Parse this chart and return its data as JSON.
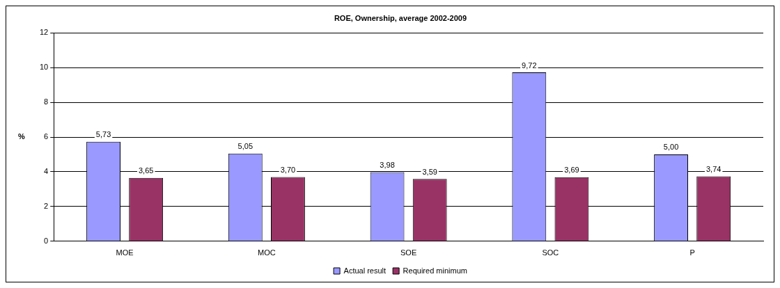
{
  "chart_data": {
    "type": "bar",
    "title": "ROE, Ownership, average 2002-2009",
    "ylabel": "%",
    "categories": [
      "MOE",
      "MOC",
      "SOE",
      "SOC",
      "P"
    ],
    "series": [
      {
        "name": "Actual result",
        "color": "#9999ff",
        "values": [
          5.73,
          5.05,
          3.98,
          9.72,
          5.0
        ],
        "value_labels": [
          "5,73",
          "5,05",
          "3,98",
          "9,72",
          "5,00"
        ]
      },
      {
        "name": "Required minimum",
        "color": "#993366",
        "values": [
          3.65,
          3.7,
          3.59,
          3.69,
          3.74
        ],
        "value_labels": [
          "3,65",
          "3,70",
          "3,59",
          "3,69",
          "3,74"
        ]
      }
    ],
    "ylim": [
      0,
      12
    ],
    "yticks": [
      0,
      2,
      4,
      6,
      8,
      10,
      12
    ],
    "grid": "y",
    "legend": "bottom"
  }
}
